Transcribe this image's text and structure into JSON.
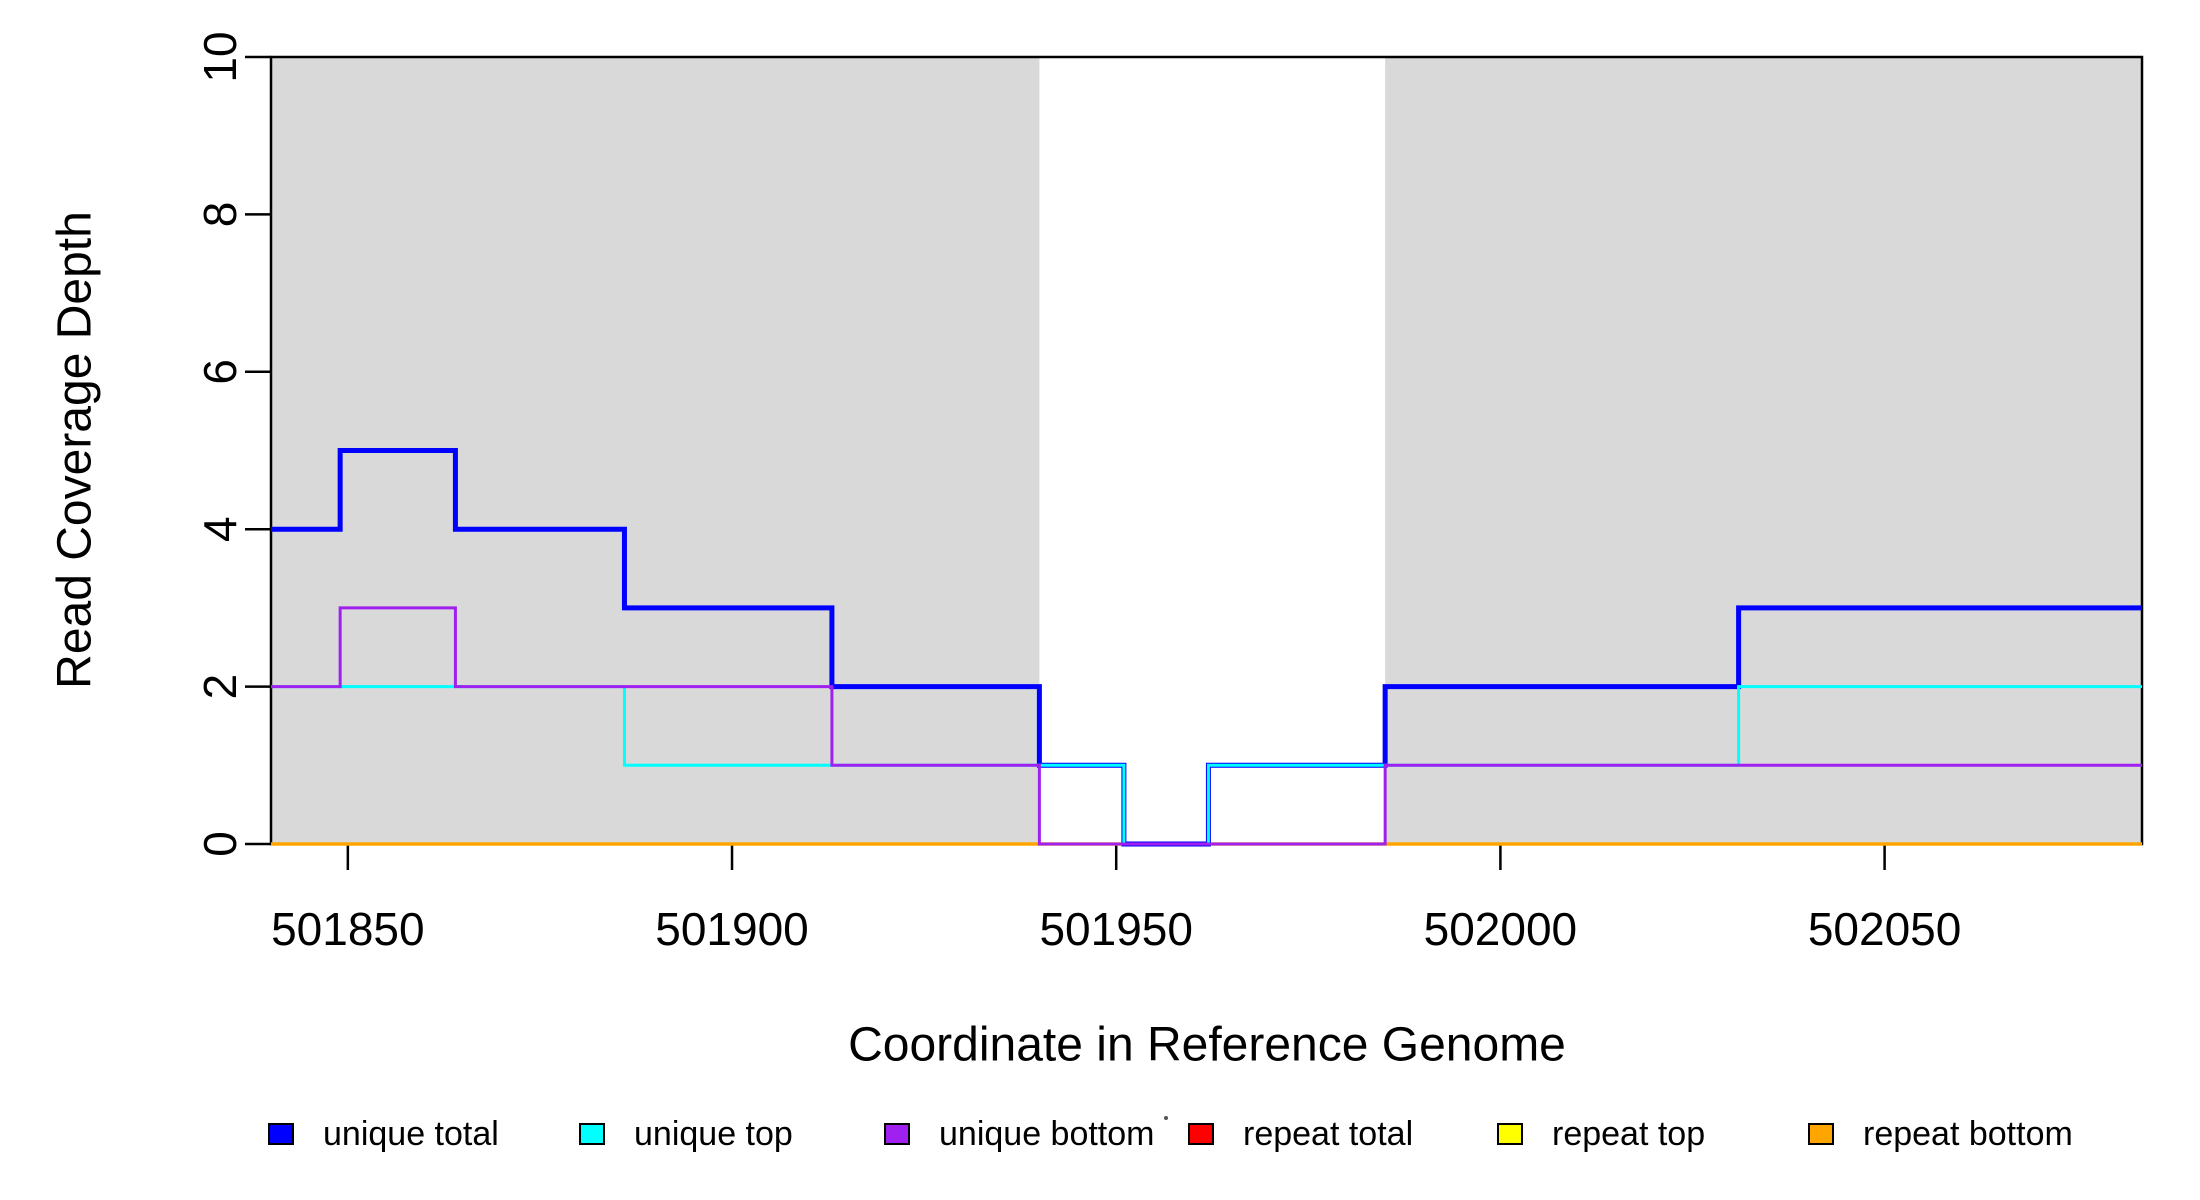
{
  "figure": {
    "background_color": "#FFFFFF",
    "plot_border_color": "#000000"
  },
  "chart_data": {
    "type": "line",
    "subtype": "step-post",
    "title": "",
    "xlabel": "Coordinate in Reference Genome",
    "ylabel": "Read Coverage Depth",
    "xlim": [
      501840,
      502083.5
    ],
    "ylim": [
      0,
      10
    ],
    "x_ticks": [
      501850,
      501900,
      501950,
      502000,
      502050
    ],
    "y_ticks": [
      0,
      2,
      4,
      6,
      8,
      10
    ],
    "grid": false,
    "legend_position": "bottom",
    "band_color": "#D9D9D9",
    "highlight_regions": [
      [
        501840,
        501940
      ],
      [
        501985,
        502083.5
      ]
    ],
    "series": [
      {
        "name": "unique total",
        "color": "#0000FF",
        "line_width": 5,
        "points": [
          [
            501840,
            4
          ],
          [
            501849,
            5
          ],
          [
            501864,
            4
          ],
          [
            501886,
            3
          ],
          [
            501913,
            2
          ],
          [
            501940,
            1
          ],
          [
            501951,
            0
          ],
          [
            501962,
            1
          ],
          [
            501985,
            2
          ],
          [
            502031,
            3
          ]
        ]
      },
      {
        "name": "unique top",
        "color": "#00FFFF",
        "line_width": 3,
        "points": [
          [
            501840,
            2
          ],
          [
            501886,
            1
          ],
          [
            501951,
            0
          ],
          [
            501962,
            1
          ],
          [
            502031,
            2
          ]
        ]
      },
      {
        "name": "unique bottom",
        "color": "#A020F0",
        "line_width": 3,
        "points": [
          [
            501840,
            2
          ],
          [
            501849,
            3
          ],
          [
            501864,
            2
          ],
          [
            501913,
            1
          ],
          [
            501940,
            0
          ],
          [
            501985,
            1
          ]
        ]
      },
      {
        "name": "repeat total",
        "color": "#FF0000",
        "line_width": 3,
        "points": [
          [
            501840,
            0
          ]
        ]
      },
      {
        "name": "repeat top",
        "color": "#FFFF00",
        "line_width": 3,
        "points": [
          [
            501840,
            0
          ]
        ]
      },
      {
        "name": "repeat bottom",
        "color": "#FFA500",
        "line_width": 3.5,
        "points": [
          [
            501840,
            0
          ]
        ]
      }
    ]
  }
}
